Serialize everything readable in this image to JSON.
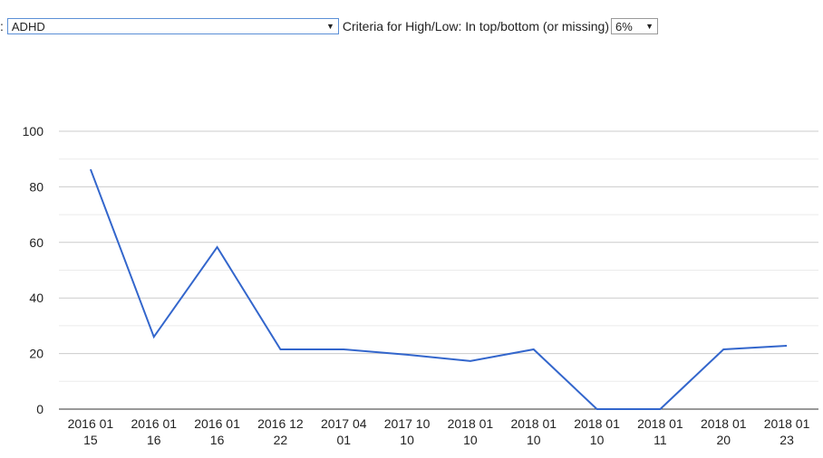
{
  "controls": {
    "prefix": ":",
    "condition_value": "ADHD",
    "criteria_label": "Criteria for High/Low: In top/bottom (or missing)",
    "criteria_value": "6%"
  },
  "chart_data": {
    "type": "line",
    "categories": [
      [
        "2016 01",
        "15"
      ],
      [
        "2016 01",
        "16"
      ],
      [
        "2016 01",
        "16"
      ],
      [
        "2016 12",
        "22"
      ],
      [
        "2017 04",
        "01"
      ],
      [
        "2017 10",
        "10"
      ],
      [
        "2018 01",
        "10"
      ],
      [
        "2018 01",
        "10"
      ],
      [
        "2018 01",
        "10"
      ],
      [
        "2018 01",
        "11"
      ],
      [
        "2018 01",
        "20"
      ],
      [
        "2018 01",
        "23"
      ]
    ],
    "series": [
      {
        "values": [
          86.3,
          26,
          58.3,
          21.5,
          21.5,
          19.6,
          17.3,
          21.5,
          0,
          0,
          21.5,
          22.8
        ],
        "color": "#3366cc"
      }
    ],
    "yticks": [
      0,
      20,
      40,
      60,
      80,
      100
    ],
    "ylim": [
      0,
      100
    ],
    "grid": true
  }
}
